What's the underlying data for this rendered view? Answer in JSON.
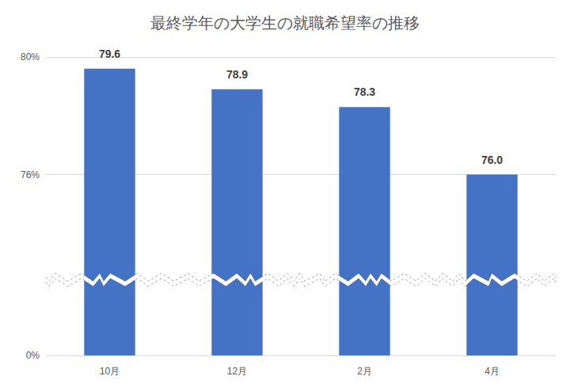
{
  "chart_data": {
    "type": "bar",
    "title": "最終学年の大学生の就職希望率の推移",
    "categories": [
      "10月",
      "12月",
      "2月",
      "4月"
    ],
    "values": [
      79.6,
      78.9,
      78.3,
      76.0
    ],
    "value_labels": [
      "79.6",
      "78.9",
      "78.3",
      "76.0"
    ],
    "color": "#4472c4",
    "ylim": [
      0,
      80
    ],
    "yticks": [
      {
        "value": 0,
        "label": "0%"
      },
      {
        "value": 76,
        "label": "76%"
      },
      {
        "value": 80,
        "label": "80%"
      }
    ],
    "ybreak": [
      2.5,
      72.5
    ],
    "grid": true,
    "data_labels": true
  }
}
